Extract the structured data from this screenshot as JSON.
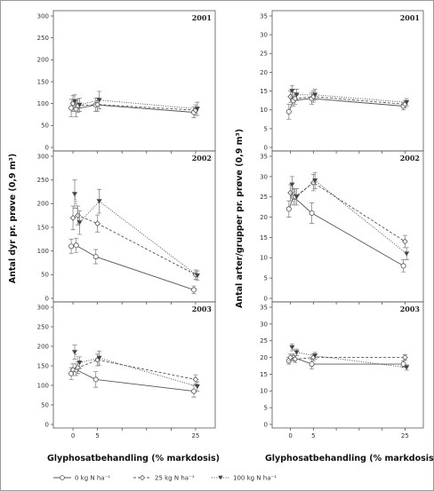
{
  "figure": {
    "y_title_left": "Antal dyr pr. prøve (0,9 m³)",
    "y_title_right": "Antal arter/grupper pr. prøve (0,9 m³)",
    "x_title_left": "Glyphosatbehandling (% markdosis)",
    "x_title_right": "Glyphosatbehandling (% markdosis)",
    "legend": [
      {
        "label": "0 kg N ha⁻¹",
        "marker": "open-circle",
        "line": "solid"
      },
      {
        "label": "25 kg N ha⁻¹",
        "marker": "open-diamond",
        "line": "dashed"
      },
      {
        "label": "100 kg N ha⁻¹",
        "marker": "filled-triangle",
        "line": "dotted"
      }
    ],
    "colors": {
      "series_0": "#555555",
      "series_1": "#555555",
      "series_2": "#444444",
      "frame": "#9a9a9a"
    }
  },
  "chart_data": [
    {
      "type": "line",
      "panel": "left-2001",
      "year_label": "2001",
      "x": [
        0,
        1,
        5,
        25
      ],
      "xticks": [
        0,
        5,
        10,
        15,
        20,
        25
      ],
      "xlim": [
        -4,
        29
      ],
      "ylim": [
        0,
        300
      ],
      "yticks": [
        0,
        50,
        100,
        150,
        200,
        250,
        300
      ],
      "series": [
        {
          "name": "0 kg N ha⁻¹",
          "values": [
            90,
            88,
            97,
            80
          ],
          "errors": [
            20,
            18,
            15,
            12
          ]
        },
        {
          "name": "25 kg N ha⁻¹",
          "values": [
            100,
            95,
            98,
            85
          ],
          "errors": [
            18,
            15,
            15,
            12
          ]
        },
        {
          "name": "100 kg N ha⁻¹",
          "values": [
            105,
            97,
            108,
            88
          ],
          "errors": [
            15,
            15,
            20,
            15
          ]
        }
      ]
    },
    {
      "type": "line",
      "panel": "left-2002",
      "year_label": "2002",
      "x": [
        0,
        1,
        5,
        25
      ],
      "xticks": [
        0,
        5,
        10,
        15,
        20,
        25
      ],
      "xlim": [
        -4,
        29
      ],
      "ylim": [
        0,
        300
      ],
      "yticks": [
        0,
        50,
        100,
        150,
        200,
        250,
        300
      ],
      "series": [
        {
          "name": "0 kg N ha⁻¹",
          "values": [
            110,
            112,
            88,
            18
          ],
          "errors": [
            15,
            15,
            15,
            8
          ]
        },
        {
          "name": "25 kg N ha⁻¹",
          "values": [
            170,
            175,
            158,
            50
          ],
          "errors": [
            25,
            20,
            18,
            10
          ]
        },
        {
          "name": "100 kg N ha⁻¹",
          "values": [
            220,
            160,
            205,
            48
          ],
          "errors": [
            30,
            25,
            25,
            10
          ]
        }
      ]
    },
    {
      "type": "line",
      "panel": "left-2003",
      "year_label": "2003",
      "x": [
        0,
        1,
        5,
        25
      ],
      "xticks": [
        0,
        5,
        10,
        15,
        20,
        25
      ],
      "xlim": [
        -4,
        29
      ],
      "ylim": [
        0,
        300
      ],
      "yticks": [
        0,
        50,
        100,
        150,
        200,
        250,
        300
      ],
      "series": [
        {
          "name": "0 kg N ha⁻¹",
          "values": [
            130,
            140,
            115,
            85
          ],
          "errors": [
            15,
            15,
            20,
            15
          ]
        },
        {
          "name": "25 kg N ha⁻¹",
          "values": [
            140,
            145,
            165,
            115
          ],
          "errors": [
            15,
            15,
            15,
            12
          ]
        },
        {
          "name": "100 kg N ha⁻¹",
          "values": [
            185,
            158,
            170,
            97
          ],
          "errors": [
            18,
            15,
            18,
            12
          ]
        }
      ]
    },
    {
      "type": "line",
      "panel": "right-2001",
      "year_label": "2001",
      "x": [
        0,
        1,
        5,
        25
      ],
      "xticks": [
        0,
        5,
        10,
        15,
        20,
        25
      ],
      "xlim": [
        -4,
        29
      ],
      "ylim": [
        0,
        35
      ],
      "yticks": [
        0,
        5,
        10,
        15,
        20,
        25,
        30,
        35
      ],
      "series": [
        {
          "name": "0 kg N ha⁻¹",
          "values": [
            9.5,
            12.5,
            13,
            11
          ],
          "errors": [
            2,
            1.5,
            1.5,
            1
          ]
        },
        {
          "name": "25 kg N ha⁻¹",
          "values": [
            13.5,
            13,
            13.5,
            11.5
          ],
          "errors": [
            1.5,
            1.5,
            1.5,
            1
          ]
        },
        {
          "name": "100 kg N ha⁻¹",
          "values": [
            15,
            14,
            14,
            12
          ],
          "errors": [
            1.5,
            1.5,
            1.5,
            1
          ]
        }
      ]
    },
    {
      "type": "line",
      "panel": "right-2002",
      "year_label": "2002",
      "x": [
        0,
        1,
        5,
        25
      ],
      "xticks": [
        0,
        5,
        10,
        15,
        20,
        25
      ],
      "xlim": [
        -4,
        29
      ],
      "ylim": [
        0,
        35
      ],
      "yticks": [
        0,
        5,
        10,
        15,
        20,
        25,
        30,
        35
      ],
      "series": [
        {
          "name": "0 kg N ha⁻¹",
          "values": [
            22,
            25,
            21,
            8
          ],
          "errors": [
            2,
            2,
            2.5,
            1.5
          ]
        },
        {
          "name": "25 kg N ha⁻¹",
          "values": [
            26,
            25,
            28.5,
            14
          ],
          "errors": [
            2,
            2,
            2,
            1.5
          ]
        },
        {
          "name": "100 kg N ha⁻¹",
          "values": [
            28,
            25,
            29,
            11
          ],
          "errors": [
            2,
            2,
            2,
            1.5
          ]
        }
      ]
    },
    {
      "type": "line",
      "panel": "right-2003",
      "year_label": "2003",
      "x": [
        0,
        1,
        5,
        25
      ],
      "xticks": [
        0,
        5,
        10,
        15,
        20,
        25
      ],
      "xlim": [
        -4,
        29
      ],
      "ylim": [
        0,
        35
      ],
      "yticks": [
        0,
        5,
        10,
        15,
        20,
        25,
        30,
        35
      ],
      "series": [
        {
          "name": "0 kg N ha⁻¹",
          "values": [
            19,
            20,
            18,
            18
          ],
          "errors": [
            1,
            1,
            1.5,
            1
          ]
        },
        {
          "name": "25 kg N ha⁻¹",
          "values": [
            20,
            19.5,
            20,
            20
          ],
          "errors": [
            1,
            1,
            1,
            0.8
          ]
        },
        {
          "name": "100 kg N ha⁻¹",
          "values": [
            23,
            21.5,
            20.5,
            17
          ],
          "errors": [
            1,
            1,
            1,
            0.8
          ]
        }
      ]
    }
  ]
}
